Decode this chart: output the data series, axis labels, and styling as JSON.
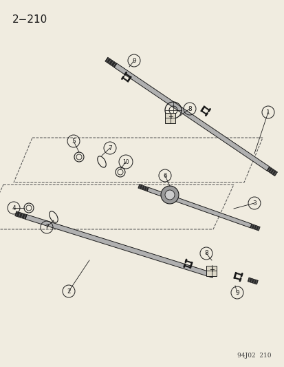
{
  "title": "2−210",
  "footer": "94J02  210",
  "bg_color": "#f0ece0",
  "line_color": "#1a1a1a",
  "shaft_gray": "#b0b0b0",
  "shaft_dark": "#2a2a2a",
  "dashed_color": "#555555",
  "label_fontsize": 7.0,
  "title_fontsize": 11,
  "figw": 4.14,
  "figh": 5.33,
  "dpi": 100
}
